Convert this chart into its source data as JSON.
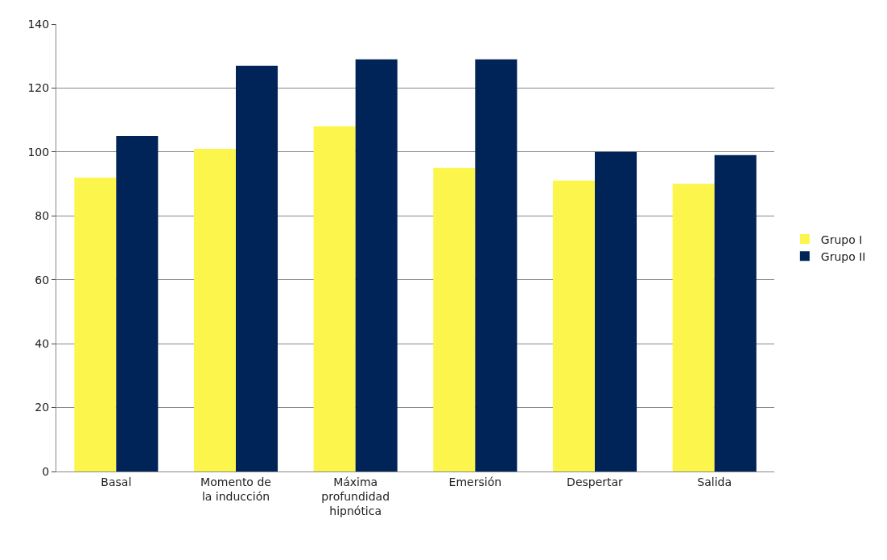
{
  "chart_data": {
    "type": "bar",
    "categories": [
      "Basal",
      "Momento de\nla inducción",
      "Máxima\nprofundidad\nhipnótica",
      "Emersión",
      "Despertar",
      "Salida"
    ],
    "series": [
      {
        "name": "Grupo I",
        "color": "#fcf54c",
        "values": [
          92,
          101,
          108,
          95,
          91,
          90
        ]
      },
      {
        "name": "Grupo II",
        "color": "#002457",
        "values": [
          105,
          127,
          129,
          129,
          100,
          99
        ]
      }
    ],
    "ylim": [
      0,
      140
    ],
    "yticks": [
      0,
      20,
      40,
      60,
      80,
      100,
      120,
      140
    ],
    "grid": "y",
    "legend": "right"
  }
}
